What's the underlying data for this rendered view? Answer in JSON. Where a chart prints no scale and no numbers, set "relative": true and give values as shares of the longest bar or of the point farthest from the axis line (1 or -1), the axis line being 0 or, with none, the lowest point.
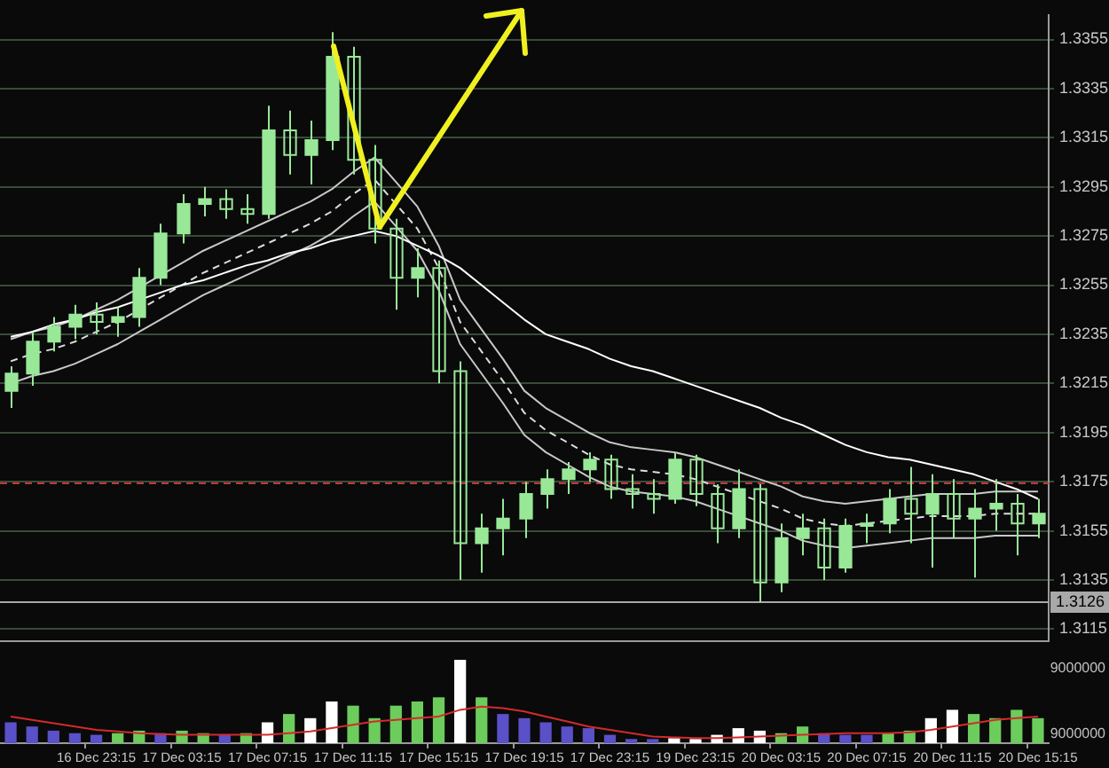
{
  "chart_data": [
    {
      "type": "candlestick",
      "color": "#98e898",
      "categories": [
        null,
        null,
        null,
        null,
        null,
        null,
        null,
        null,
        null,
        null,
        null,
        null,
        null,
        null,
        null,
        null,
        null,
        null,
        null,
        null,
        null,
        null,
        null,
        null,
        null,
        null,
        null,
        null,
        null,
        null,
        null,
        null,
        null,
        null,
        null,
        null,
        null,
        null,
        null,
        null,
        null,
        null,
        null,
        null,
        null,
        null,
        null,
        null,
        null
      ],
      "ohlc": [
        [
          1.3212,
          1.3222,
          1.3205,
          1.3219
        ],
        [
          1.3219,
          1.3236,
          1.3214,
          1.3232
        ],
        [
          1.3232,
          1.3242,
          1.3228,
          1.3238
        ],
        [
          1.3238,
          1.3247,
          1.3233,
          1.3243
        ],
        [
          1.3243,
          1.3248,
          1.3235,
          1.324
        ],
        [
          1.324,
          1.3246,
          1.3234,
          1.3242
        ],
        [
          1.3242,
          1.3262,
          1.3238,
          1.3258
        ],
        [
          1.3258,
          1.328,
          1.3255,
          1.3276
        ],
        [
          1.3276,
          1.3292,
          1.3272,
          1.3288
        ],
        [
          1.3288,
          1.3295,
          1.3283,
          1.329
        ],
        [
          1.329,
          1.3294,
          1.3282,
          1.3286
        ],
        [
          1.3286,
          1.3292,
          1.328,
          1.3284
        ],
        [
          1.3284,
          1.3328,
          1.3282,
          1.3318
        ],
        [
          1.3318,
          1.3326,
          1.33,
          1.3308
        ],
        [
          1.3308,
          1.3322,
          1.3296,
          1.3314
        ],
        [
          1.3314,
          1.3358,
          1.331,
          1.3348
        ],
        [
          1.3348,
          1.3352,
          1.33,
          1.3306
        ],
        [
          1.3306,
          1.3312,
          1.3272,
          1.3278
        ],
        [
          1.3278,
          1.3282,
          1.3245,
          1.3258
        ],
        [
          1.3258,
          1.327,
          1.325,
          1.3262
        ],
        [
          1.3262,
          1.3265,
          1.3215,
          1.322
        ],
        [
          1.322,
          1.3224,
          1.3135,
          1.315
        ],
        [
          1.315,
          1.3162,
          1.3138,
          1.3156
        ],
        [
          1.3156,
          1.3168,
          1.3145,
          1.316
        ],
        [
          1.316,
          1.3175,
          1.3152,
          1.317
        ],
        [
          1.317,
          1.318,
          1.3164,
          1.3176
        ],
        [
          1.3176,
          1.3183,
          1.317,
          1.318
        ],
        [
          1.318,
          1.3187,
          1.3175,
          1.3184
        ],
        [
          1.3184,
          1.3186,
          1.3168,
          1.3172
        ],
        [
          1.3172,
          1.3178,
          1.3164,
          1.317
        ],
        [
          1.317,
          1.3176,
          1.3162,
          1.3168
        ],
        [
          1.3168,
          1.3187,
          1.3166,
          1.3184
        ],
        [
          1.3184,
          1.3186,
          1.3165,
          1.317
        ],
        [
          1.317,
          1.3174,
          1.315,
          1.3156
        ],
        [
          1.3156,
          1.318,
          1.3152,
          1.3172
        ],
        [
          1.3172,
          1.3174,
          1.3126,
          1.3134
        ],
        [
          1.3134,
          1.3158,
          1.313,
          1.3152
        ],
        [
          1.3152,
          1.3162,
          1.3145,
          1.3156
        ],
        [
          1.3156,
          1.316,
          1.3135,
          1.314
        ],
        [
          1.314,
          1.316,
          1.3138,
          1.3157
        ],
        [
          1.3157,
          1.3162,
          1.315,
          1.3158
        ],
        [
          1.3158,
          1.3172,
          1.3154,
          1.3168
        ],
        [
          1.3168,
          1.3181,
          1.315,
          1.3162
        ],
        [
          1.3162,
          1.3178,
          1.314,
          1.317
        ],
        [
          1.317,
          1.3176,
          1.3152,
          1.316
        ],
        [
          1.316,
          1.3172,
          1.3136,
          1.3164
        ],
        [
          1.3164,
          1.3176,
          1.3155,
          1.3166
        ],
        [
          1.3166,
          1.317,
          1.3145,
          1.3158
        ],
        [
          1.3158,
          1.3168,
          1.3152,
          1.3162
        ]
      ],
      "series": [
        {
          "type": "line",
          "color": "#ffffff",
          "line_style": "solid",
          "values": [
            1.3234,
            1.3236,
            1.3239,
            1.3241,
            1.3244,
            1.3246,
            1.3249,
            1.3252,
            1.3255,
            1.3257,
            1.326,
            1.3263,
            1.3265,
            1.3268,
            1.327,
            1.3273,
            1.3275,
            1.3277,
            1.3275,
            1.3271,
            1.3267,
            1.3262,
            1.3255,
            1.3248,
            1.3241,
            1.3235,
            1.3232,
            1.3229,
            1.3225,
            1.3222,
            1.322,
            1.3217,
            1.3214,
            1.3211,
            1.3208,
            1.3205,
            1.3201,
            1.3198,
            1.3194,
            1.319,
            1.3187,
            1.3185,
            1.3184,
            1.3182,
            1.318,
            1.3178,
            1.3175,
            1.3172,
            1.3168
          ]
        },
        {
          "type": "line",
          "color": "#c8c8c8",
          "line_style": "solid",
          "values": [
            1.3233,
            1.3236,
            1.3238,
            1.3241,
            1.3245,
            1.3249,
            1.3254,
            1.3259,
            1.3264,
            1.3269,
            1.3273,
            1.3277,
            1.3281,
            1.3285,
            1.3289,
            1.3294,
            1.3301,
            1.3307,
            1.3297,
            1.3287,
            1.3271,
            1.3249,
            1.3237,
            1.3225,
            1.3212,
            1.3205,
            1.32,
            1.3195,
            1.3191,
            1.3189,
            1.3188,
            1.3187,
            1.3185,
            1.3182,
            1.3179,
            1.3176,
            1.3173,
            1.3169,
            1.3167,
            1.3166,
            1.3167,
            1.3168,
            1.3169,
            1.317,
            1.317,
            1.317,
            1.3171,
            1.3171,
            1.3171
          ]
        },
        {
          "type": "line",
          "color": "#dddddd",
          "line_style": "dashed",
          "values": [
            1.3224,
            1.3227,
            1.3229,
            1.3232,
            1.3236,
            1.324,
            1.3245,
            1.325,
            1.3255,
            1.326,
            1.3264,
            1.3268,
            1.3272,
            1.3276,
            1.328,
            1.3285,
            1.3292,
            1.3298,
            1.3288,
            1.3278,
            1.3262,
            1.324,
            1.3228,
            1.3216,
            1.3203,
            1.3196,
            1.3191,
            1.3186,
            1.3182,
            1.318,
            1.3179,
            1.3178,
            1.3176,
            1.3173,
            1.317,
            1.3167,
            1.3164,
            1.316,
            1.3158,
            1.3157,
            1.3158,
            1.3159,
            1.316,
            1.3161,
            1.3161,
            1.3161,
            1.3162,
            1.3162,
            1.3162
          ]
        },
        {
          "type": "line",
          "color": "#c8c8c8",
          "line_style": "solid",
          "values": [
            1.3215,
            1.3218,
            1.322,
            1.3223,
            1.3227,
            1.3231,
            1.3236,
            1.3241,
            1.3246,
            1.3251,
            1.3255,
            1.3259,
            1.3263,
            1.3267,
            1.3271,
            1.3276,
            1.3283,
            1.3289,
            1.3279,
            1.3269,
            1.3253,
            1.3231,
            1.3219,
            1.3207,
            1.3194,
            1.3187,
            1.3182,
            1.3177,
            1.3173,
            1.3171,
            1.317,
            1.3169,
            1.3167,
            1.3164,
            1.3161,
            1.3158,
            1.3155,
            1.3151,
            1.3149,
            1.3148,
            1.3149,
            1.315,
            1.3151,
            1.3152,
            1.3152,
            1.3152,
            1.3153,
            1.3153,
            1.3153
          ]
        }
      ],
      "ylim": [
        1.311,
        1.3365
      ],
      "yticks": [
        1.3115,
        1.3135,
        1.3155,
        1.3175,
        1.3195,
        1.3215,
        1.3235,
        1.3255,
        1.3275,
        1.3295,
        1.3315,
        1.3335,
        1.3355
      ],
      "grid": "y",
      "marker": "none",
      "tick_labels": "y",
      "ref_lines": [
        {
          "axis": "y",
          "value": 1.3175,
          "color": "#c03838",
          "line_style": "dashed"
        },
        {
          "axis": "y",
          "value": 1.3126,
          "label": "1.3126",
          "color": "#a8a8a8",
          "line_style": "solid"
        }
      ]
    },
    {
      "type": "bar",
      "relative": true,
      "tick_labels": "x",
      "marker": "none",
      "categories": [
        null,
        null,
        null,
        null,
        "16 Dec 23:15",
        null,
        null,
        null,
        "17 Dec 03:15",
        null,
        null,
        null,
        "17 Dec 07:15",
        null,
        null,
        null,
        "17 Dec 11:15",
        null,
        null,
        null,
        "17 Dec 15:15",
        null,
        null,
        null,
        "17 Dec 19:15",
        null,
        null,
        null,
        "17 Dec 23:15",
        null,
        null,
        null,
        "19 Dec 23:15",
        null,
        null,
        null,
        "20 Dec 03:15",
        null,
        null,
        null,
        "20 Dec 07:15",
        null,
        null,
        null,
        "20 Dec 11:15",
        null,
        null,
        null,
        "20 Dec 15:15"
      ],
      "series": [
        {
          "type": "bar",
          "values": [
            0.25,
            0.2,
            0.15,
            0.12,
            0.1,
            0.12,
            0.15,
            0.12,
            0.15,
            0.12,
            0.1,
            0.12,
            0.25,
            0.35,
            0.3,
            0.5,
            0.45,
            0.3,
            0.45,
            0.5,
            0.55,
            1,
            0.55,
            0.35,
            0.3,
            0.25,
            0.2,
            0.18,
            0.1,
            0.05,
            0.05,
            0.06,
            0.05,
            0.1,
            0.18,
            0.15,
            0.12,
            0.2,
            0.12,
            0.1,
            0.1,
            0.12,
            0.15,
            0.3,
            0.4,
            0.35,
            0.3,
            0.4,
            0.3
          ],
          "colors": [
            "#5a50c8",
            "#5a50c8",
            "#5a50c8",
            "#5a50c8",
            "#5a50c8",
            "#6ccc5c",
            "#6ccc5c",
            "#5a50c8",
            "#6ccc5c",
            "#6ccc5c",
            "#5a50c8",
            "#6ccc5c",
            "#ffffff",
            "#6ccc5c",
            "#ffffff",
            "#ffffff",
            "#6ccc5c",
            "#6ccc5c",
            "#6ccc5c",
            "#6ccc5c",
            "#6ccc5c",
            "#ffffff",
            "#6ccc5c",
            "#5a50c8",
            "#5a50c8",
            "#5a50c8",
            "#5a50c8",
            "#5a50c8",
            "#5a50c8",
            "#5a50c8",
            "#5a50c8",
            "#ffffff",
            "#ffffff",
            "#ffffff",
            "#ffffff",
            "#ffffff",
            "#6ccc5c",
            "#6ccc5c",
            "#5a50c8",
            "#5a50c8",
            "#5a50c8",
            "#6ccc5c",
            "#6ccc5c",
            "#ffffff",
            "#ffffff",
            "#6ccc5c",
            "#6ccc5c",
            "#6ccc5c",
            "#6ccc5c"
          ]
        },
        {
          "type": "line",
          "color": "#d42a2a",
          "values": [
            0.32,
            0.28,
            0.24,
            0.2,
            0.16,
            0.14,
            0.12,
            0.11,
            0.1,
            0.1,
            0.1,
            0.1,
            0.1,
            0.12,
            0.14,
            0.18,
            0.22,
            0.26,
            0.28,
            0.3,
            0.32,
            0.4,
            0.44,
            0.42,
            0.38,
            0.32,
            0.26,
            0.2,
            0.16,
            0.12,
            0.08,
            0.07,
            0.06,
            0.06,
            0.07,
            0.08,
            0.09,
            0.1,
            0.11,
            0.12,
            0.12,
            0.12,
            0.13,
            0.16,
            0.2,
            0.24,
            0.28,
            0.3,
            0.32
          ]
        }
      ],
      "annotations": [
        "9000000",
        "9000000"
      ]
    }
  ]
}
